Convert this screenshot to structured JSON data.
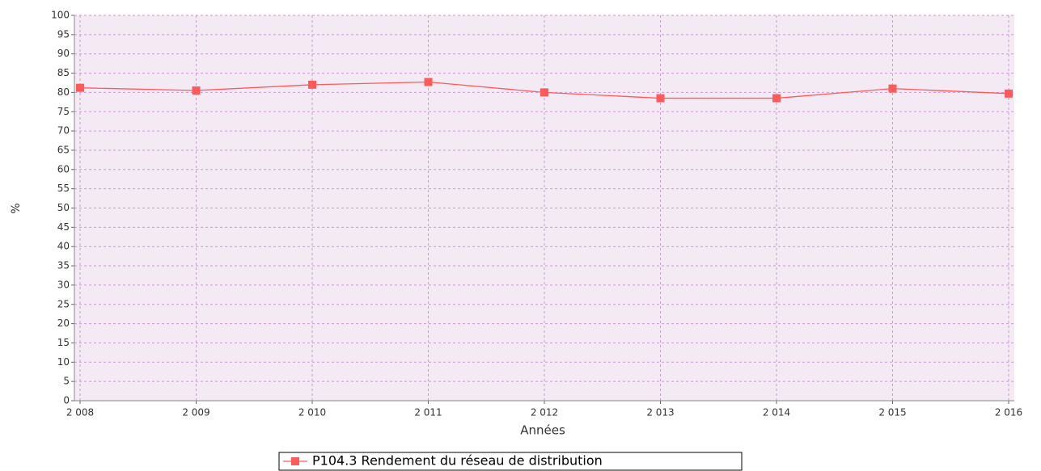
{
  "chart_data": {
    "type": "line",
    "x_label": "Années",
    "y_label": "%",
    "x": [
      2008,
      2009,
      2010,
      2011,
      2012,
      2013,
      2014,
      2015,
      2016
    ],
    "series": [
      {
        "name": "P104.3 Rendement du réseau de distribution",
        "color": "#ff5a5a",
        "values": [
          81.2,
          80.5,
          82,
          82.7,
          80,
          78.5,
          78.5,
          81,
          79.7
        ]
      }
    ],
    "xlim": [
      2008,
      2016
    ],
    "xticks": [
      {
        "value": 2008,
        "label": "2 008"
      },
      {
        "value": 2009,
        "label": "2 009"
      },
      {
        "value": 2010,
        "label": "2 010"
      },
      {
        "value": 2011,
        "label": "2 011"
      },
      {
        "value": 2012,
        "label": "2 012"
      },
      {
        "value": 2013,
        "label": "2 013"
      },
      {
        "value": 2014,
        "label": "2 014"
      },
      {
        "value": 2015,
        "label": "2 015"
      },
      {
        "value": 2016,
        "label": "2 016"
      }
    ],
    "ylim": [
      0,
      100
    ],
    "yticks": [
      0,
      5,
      10,
      15,
      20,
      25,
      30,
      35,
      40,
      45,
      50,
      55,
      60,
      65,
      70,
      75,
      80,
      85,
      90,
      95,
      100
    ],
    "grid": true,
    "legend": "bottom"
  }
}
